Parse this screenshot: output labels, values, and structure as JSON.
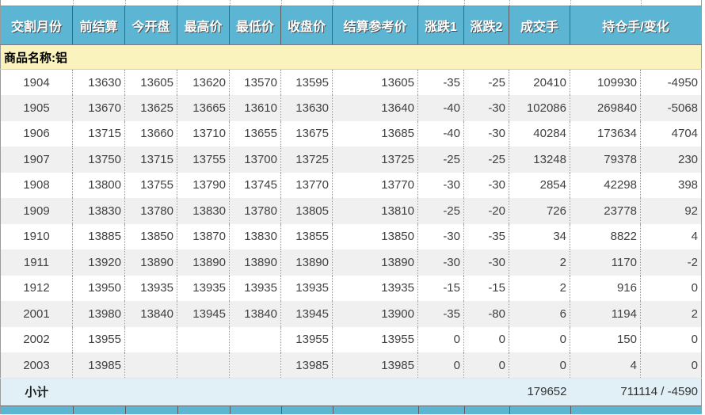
{
  "table": {
    "columns": [
      "交割月份",
      "前结算",
      "今开盘",
      "最高价",
      "最低价",
      "收盘价",
      "结算参考价",
      "涨跌1",
      "涨跌2",
      "成交手",
      "持仓手/变化"
    ],
    "group_label": "商品名称:铝",
    "rows": [
      [
        "1904",
        "13630",
        "13605",
        "13620",
        "13570",
        "13595",
        "13605",
        "-35",
        "-25",
        "20410",
        "109930",
        "-4950"
      ],
      [
        "1905",
        "13670",
        "13625",
        "13665",
        "13610",
        "13630",
        "13640",
        "-40",
        "-30",
        "102086",
        "269840",
        "-5068"
      ],
      [
        "1906",
        "13715",
        "13660",
        "13710",
        "13655",
        "13675",
        "13685",
        "-40",
        "-30",
        "40284",
        "173634",
        "4704"
      ],
      [
        "1907",
        "13750",
        "13715",
        "13755",
        "13700",
        "13725",
        "13725",
        "-25",
        "-25",
        "13248",
        "79378",
        "230"
      ],
      [
        "1908",
        "13800",
        "13755",
        "13790",
        "13745",
        "13770",
        "13770",
        "-30",
        "-30",
        "2854",
        "42298",
        "398"
      ],
      [
        "1909",
        "13830",
        "13780",
        "13830",
        "13780",
        "13805",
        "13810",
        "-25",
        "-20",
        "726",
        "23778",
        "92"
      ],
      [
        "1910",
        "13885",
        "13850",
        "13870",
        "13830",
        "13855",
        "13850",
        "-30",
        "-35",
        "34",
        "8822",
        "4"
      ],
      [
        "1911",
        "13920",
        "13890",
        "13890",
        "13890",
        "13890",
        "13890",
        "-30",
        "-30",
        "2",
        "1170",
        "-2"
      ],
      [
        "1912",
        "13950",
        "13935",
        "13935",
        "13935",
        "13935",
        "13935",
        "-15",
        "-15",
        "2",
        "916",
        "0"
      ],
      [
        "2001",
        "13980",
        "13840",
        "13945",
        "13840",
        "13945",
        "13900",
        "-35",
        "-80",
        "6",
        "1194",
        "2"
      ],
      [
        "2002",
        "13955",
        "",
        "",
        "",
        "13955",
        "13955",
        "0",
        "0",
        "0",
        "150",
        "0"
      ],
      [
        "2003",
        "13985",
        "",
        "",
        "",
        "13985",
        "13985",
        "0",
        "0",
        "0",
        "4",
        "0"
      ]
    ],
    "subtotal": {
      "label": "小计",
      "volume": "179652",
      "open_interest": "711114 / -4590"
    }
  },
  "colors": {
    "header_bg": "#5CB6D3",
    "header_text": "#FFFFFF",
    "group_row_bg": "#FBF3BE",
    "row_alt_bg": "#F0F0F0",
    "subtotal_bg": "#E1EFF7",
    "data_text": "#404040"
  }
}
